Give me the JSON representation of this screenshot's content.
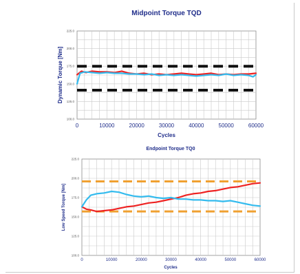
{
  "chart_data": [
    {
      "type": "line",
      "title": "Midpoint Torque TQD",
      "xlabel": "Cycles",
      "ylabel": "Dynamic Torque [Nm]",
      "xlim": [
        0,
        60000
      ],
      "ylim": [
        100,
        225
      ],
      "x_ticks": [
        "0",
        "10000",
        "20000",
        "30000",
        "40000",
        "50000",
        "60000"
      ],
      "y_ticks": [
        "100.0",
        "125.0",
        "150.0",
        "175.0",
        "200.0",
        "225.0"
      ],
      "grid": true,
      "limits": [
        {
          "y": 175,
          "color": "#111111",
          "style": "dashed"
        },
        {
          "y": 141,
          "color": "#111111",
          "style": "dashed"
        }
      ],
      "series": [
        {
          "color": "#ee2222",
          "x": [
            0,
            1500,
            3000,
            5000,
            7500,
            10000,
            12500,
            15000,
            17500,
            20000,
            22500,
            25000,
            27500,
            30000,
            32500,
            35000,
            37500,
            40000,
            42500,
            45000,
            47500,
            50000,
            52500,
            55000,
            57500,
            60000
          ],
          "y": [
            163,
            168,
            166,
            168,
            167,
            167,
            166,
            168,
            165,
            164,
            165,
            163,
            164,
            163,
            164,
            165,
            164,
            163,
            164,
            165,
            163,
            164,
            163,
            164,
            164,
            165
          ]
        },
        {
          "color": "#33bbee",
          "x": [
            0,
            1000,
            2500,
            5000,
            7500,
            10000,
            12500,
            15000,
            17500,
            20000,
            22500,
            25000,
            27500,
            30000,
            32500,
            35000,
            37500,
            40000,
            42500,
            45000,
            47500,
            50000,
            52500,
            55000,
            57500,
            59000,
            60000
          ],
          "y": [
            150,
            165,
            167,
            166,
            165,
            166,
            165,
            165,
            164,
            164,
            163,
            164,
            162,
            163,
            162,
            163,
            162,
            161,
            162,
            163,
            162,
            164,
            162,
            163,
            162,
            160,
            163
          ]
        }
      ]
    },
    {
      "type": "line",
      "title": "Endpoint Torque TQ0",
      "xlabel": "Cycles",
      "ylabel": "Low Speed Torque [Nm]",
      "xlim": [
        0,
        60000
      ],
      "ylim": [
        100,
        225
      ],
      "x_ticks": [
        "0",
        "10000",
        "20000",
        "30000",
        "40000",
        "50000",
        "60000"
      ],
      "y_ticks": [
        "100.0",
        "125.0",
        "150.0",
        "175.0",
        "200.0",
        "225.0"
      ],
      "grid": true,
      "limits": [
        {
          "y": 196,
          "color": "#f0a030",
          "style": "dashed"
        },
        {
          "y": 157,
          "color": "#f0a030",
          "style": "dashed"
        }
      ],
      "series": [
        {
          "color": "#ee2222",
          "x": [
            0,
            1500,
            3000,
            5000,
            7500,
            10000,
            12500,
            15000,
            17500,
            20000,
            22500,
            25000,
            27500,
            30000,
            32500,
            35000,
            37500,
            40000,
            42500,
            45000,
            47500,
            50000,
            52500,
            55000,
            57500,
            60000
          ],
          "y": [
            163,
            160,
            159,
            157,
            158,
            159,
            161,
            163,
            164,
            166,
            168,
            169,
            171,
            173,
            175,
            178,
            180,
            181,
            183,
            184,
            186,
            188,
            189,
            191,
            193,
            194
          ]
        },
        {
          "color": "#33bbee",
          "x": [
            0,
            1500,
            3000,
            5000,
            7500,
            10000,
            12500,
            15000,
            17500,
            20000,
            22500,
            25000,
            27500,
            30000,
            32500,
            35000,
            37500,
            40000,
            42500,
            45000,
            47500,
            50000,
            52500,
            55000,
            57500,
            60000
          ],
          "y": [
            163,
            172,
            178,
            180,
            181,
            183,
            182,
            179,
            177,
            176,
            177,
            175,
            174,
            175,
            173,
            173,
            172,
            172,
            171,
            171,
            170,
            171,
            169,
            167,
            165,
            164
          ]
        }
      ]
    }
  ]
}
